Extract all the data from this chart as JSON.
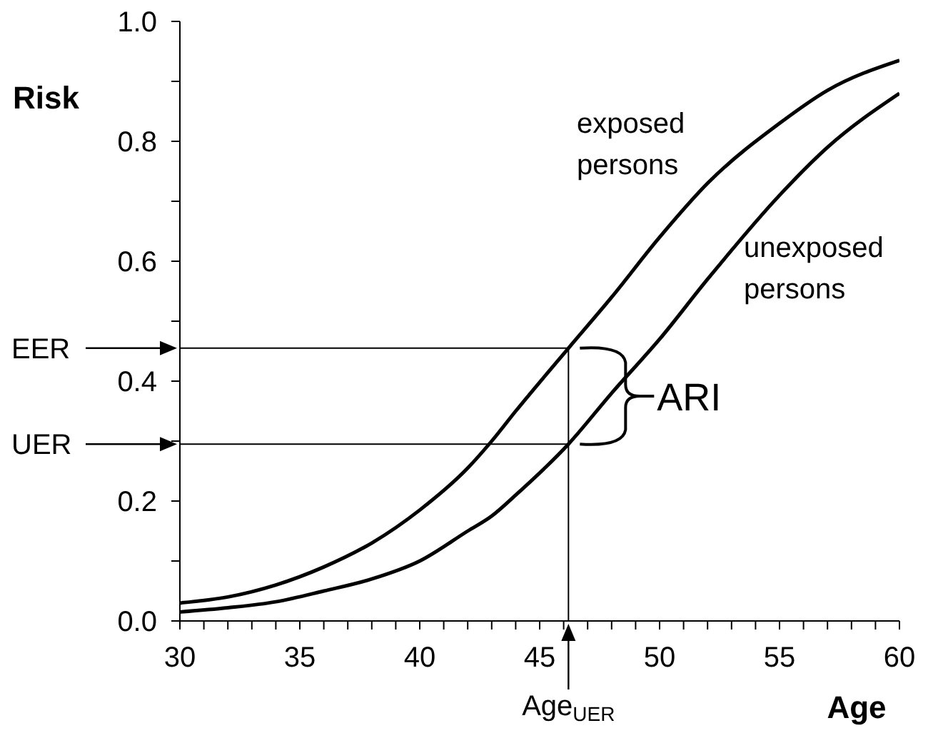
{
  "chart_data": {
    "type": "line",
    "xlabel": "Age",
    "ylabel": "Risk",
    "xlim": [
      30,
      60
    ],
    "ylim": [
      0,
      1.0
    ],
    "xticks": [
      30,
      {
        "value": 31,
        "label": null
      },
      {
        "value": 32,
        "label": null
      },
      {
        "value": 33,
        "label": null
      },
      {
        "value": 34,
        "label": null
      },
      35,
      {
        "value": 36,
        "label": null
      },
      {
        "value": 37,
        "label": null
      },
      {
        "value": 38,
        "label": null
      },
      {
        "value": 39,
        "label": null
      },
      40,
      {
        "value": 41,
        "label": null
      },
      {
        "value": 42,
        "label": null
      },
      {
        "value": 43,
        "label": null
      },
      {
        "value": 44,
        "label": null
      },
      45,
      {
        "value": 46,
        "label": null
      },
      {
        "value": 47,
        "label": null
      },
      {
        "value": 48,
        "label": null
      },
      {
        "value": 49,
        "label": null
      },
      50,
      {
        "value": 51,
        "label": null
      },
      {
        "value": 52,
        "label": null
      },
      {
        "value": 53,
        "label": null
      },
      {
        "value": 54,
        "label": null
      },
      55,
      {
        "value": 56,
        "label": null
      },
      {
        "value": 57,
        "label": null
      },
      {
        "value": 58,
        "label": null
      },
      {
        "value": 59,
        "label": null
      },
      60
    ],
    "yticks": [
      {
        "value": 0,
        "label": "0.0"
      },
      {
        "value": 0.1,
        "label": null
      },
      {
        "value": 0.2,
        "label": "0.2"
      },
      {
        "value": 0.3,
        "label": null
      },
      {
        "value": 0.4,
        "label": "0.4"
      },
      {
        "value": 0.5,
        "label": null
      },
      {
        "value": 0.6,
        "label": "0.6"
      },
      {
        "value": 0.7,
        "label": null
      },
      {
        "value": 0.8,
        "label": "0.8"
      },
      {
        "value": 0.9,
        "label": null
      },
      {
        "value": 1.0,
        "label": "1.0"
      }
    ],
    "grid": false,
    "legend": false,
    "marker": "none",
    "line_style": "solid",
    "series": [
      {
        "name": "exposed persons",
        "color": "#000000",
        "x": [
          30,
          32,
          34,
          36,
          38,
          40,
          42,
          43,
          44,
          46.2,
          48,
          50,
          52,
          55,
          57,
          60
        ],
        "values": [
          0.03,
          0.04,
          0.06,
          0.09,
          0.13,
          0.185,
          0.255,
          0.3,
          0.35,
          0.455,
          0.54,
          0.64,
          0.73,
          0.83,
          0.885,
          0.935
        ]
      },
      {
        "name": "unexposed persons",
        "color": "#000000",
        "x": [
          30,
          32,
          34,
          36,
          38,
          40,
          42,
          43,
          44,
          46.2,
          48,
          50,
          52,
          55,
          57,
          60
        ],
        "values": [
          0.015,
          0.022,
          0.032,
          0.05,
          0.07,
          0.1,
          0.15,
          0.175,
          0.21,
          0.295,
          0.38,
          0.47,
          0.57,
          0.71,
          0.79,
          0.88
        ]
      }
    ],
    "ref_lines": [
      {
        "axis": "y",
        "value": 0.455,
        "label": "EER",
        "color": "#000000"
      },
      {
        "axis": "y",
        "value": 0.295,
        "label": "UER",
        "color": "#000000"
      },
      {
        "axis": "x",
        "value": 46.2,
        "label": "Age$_{UER}$",
        "color": "#000000"
      }
    ],
    "annotations": [
      "ARI"
    ]
  }
}
